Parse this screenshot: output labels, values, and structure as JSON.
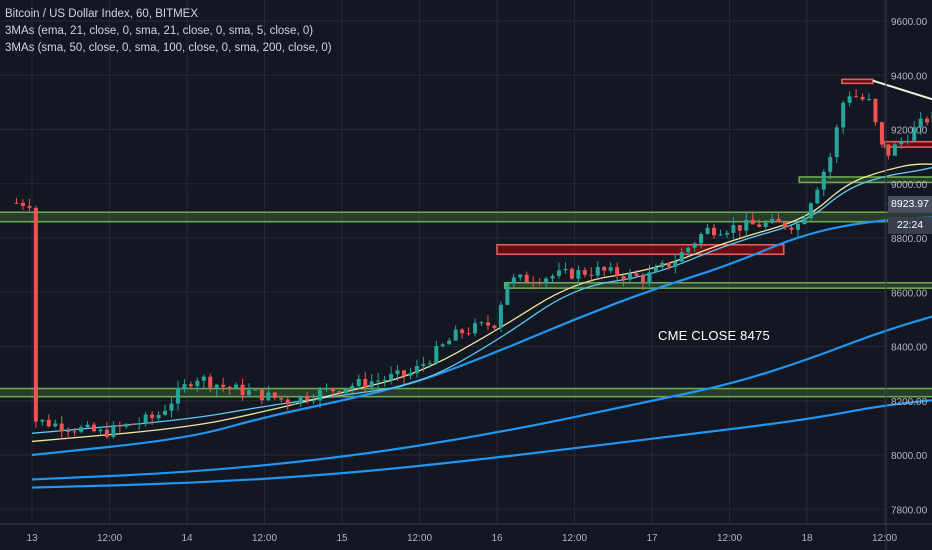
{
  "legend": {
    "line1": "Bitcoin / US Dollar Index, 60, BITMEX",
    "line2": "3MAs (ema, 21, close, 0, sma, 21, close, 0, sma, 5, close, 0)",
    "line3": "3MAs (sma, 50, close, 0, sma, 100, close, 0, sma, 200, close, 0)"
  },
  "annotation": "CME CLOSE 8475",
  "last_price_label": "8923.97",
  "countdown_label": "22:24",
  "colors": {
    "background": "#131722",
    "grid": "#242833",
    "bull": "#26a69a",
    "bear": "#ef5350",
    "ma_blue": "#2196f3",
    "ma_light": "#5fc8f0",
    "ma_yellow": "#f0e6a0",
    "zone_green": "#6aa84f",
    "zone_red": "#cc0000",
    "trendline": "#f2f0dc"
  },
  "chart_data": {
    "type": "candlestick",
    "y_axis_ticks": [
      "9600.00",
      "9400.00",
      "9200.00",
      "9000.00",
      "8800.00",
      "8600.00",
      "8400.00",
      "8200.00",
      "8000.00",
      "7800.00"
    ],
    "x_axis_ticks": [
      "13",
      "12:00",
      "14",
      "12:00",
      "15",
      "12:00",
      "16",
      "12:00",
      "17",
      "12:00",
      "18",
      "12:00"
    ],
    "ylim": [
      7760,
      9680
    ],
    "last_price": 8923.97,
    "moving_averages": [
      {
        "name": "sma 200",
        "color": "#2196f3",
        "points": [
          [
            0,
            7880
          ],
          [
            2,
            7895
          ],
          [
            4,
            7930
          ],
          [
            6,
            7990
          ],
          [
            8,
            8060
          ],
          [
            10,
            8130
          ],
          [
            11,
            8185
          ],
          [
            12.1,
            8215
          ]
        ]
      },
      {
        "name": "sma 100",
        "color": "#2196f3",
        "points": [
          [
            0,
            7910
          ],
          [
            2,
            7935
          ],
          [
            4,
            7990
          ],
          [
            6,
            8080
          ],
          [
            8,
            8200
          ],
          [
            9,
            8260
          ],
          [
            10,
            8350
          ],
          [
            11,
            8460
          ],
          [
            12.1,
            8550
          ]
        ]
      },
      {
        "name": "sma 50",
        "color": "#2196f3",
        "points": [
          [
            0,
            8000
          ],
          [
            2,
            8060
          ],
          [
            3,
            8140
          ],
          [
            4,
            8200
          ],
          [
            5,
            8270
          ],
          [
            6,
            8380
          ],
          [
            7,
            8500
          ],
          [
            8,
            8610
          ],
          [
            9,
            8700
          ],
          [
            10,
            8820
          ],
          [
            11,
            8870
          ],
          [
            12.2,
            8880
          ]
        ]
      },
      {
        "name": "ema 21",
        "color": "#5fc8f0",
        "points": [
          [
            0,
            8080
          ],
          [
            2,
            8130
          ],
          [
            3,
            8180
          ],
          [
            4,
            8220
          ],
          [
            5,
            8260
          ],
          [
            6,
            8420
          ],
          [
            7,
            8620
          ],
          [
            8,
            8660
          ],
          [
            9,
            8780
          ],
          [
            10,
            8860
          ],
          [
            10.5,
            8980
          ],
          [
            11,
            9030
          ],
          [
            11.5,
            9050
          ],
          [
            12.3,
            9110
          ]
        ]
      },
      {
        "name": "sma 21",
        "color": "#f0e6a0",
        "points": [
          [
            0,
            8050
          ],
          [
            2,
            8100
          ],
          [
            3,
            8160
          ],
          [
            4,
            8230
          ],
          [
            5,
            8300
          ],
          [
            6,
            8460
          ],
          [
            7,
            8640
          ],
          [
            8,
            8680
          ],
          [
            9,
            8790
          ],
          [
            10,
            8870
          ],
          [
            10.5,
            9000
          ],
          [
            11,
            9050
          ],
          [
            11.5,
            9080
          ],
          [
            12.3,
            9050
          ]
        ]
      }
    ],
    "zones": [
      {
        "kind": "support",
        "x0": -0.5,
        "x1": 12.6,
        "y0": 8860,
        "y1": 8895
      },
      {
        "kind": "support",
        "x0": -0.5,
        "x1": 15.9,
        "y0": 8215,
        "y1": 8245
      },
      {
        "kind": "support",
        "x0": 6.1,
        "x1": 13.2,
        "y0": 8615,
        "y1": 8635
      },
      {
        "kind": "support",
        "x0": 9.9,
        "x1": 12.0,
        "y0": 9005,
        "y1": 9025
      },
      {
        "kind": "resistance",
        "x0": 6.0,
        "x1": 9.7,
        "y0": 8740,
        "y1": 8775
      },
      {
        "kind": "resistance",
        "x0": 10.45,
        "x1": 10.85,
        "y0": 9370,
        "y1": 9385
      },
      {
        "kind": "resistance",
        "x0": 11.0,
        "x1": 11.8,
        "y0": 9135,
        "y1": 9155
      }
    ],
    "trendline": {
      "from": [
        10.85,
        9380
      ],
      "to": [
        13.65,
        9130
      ]
    }
  }
}
